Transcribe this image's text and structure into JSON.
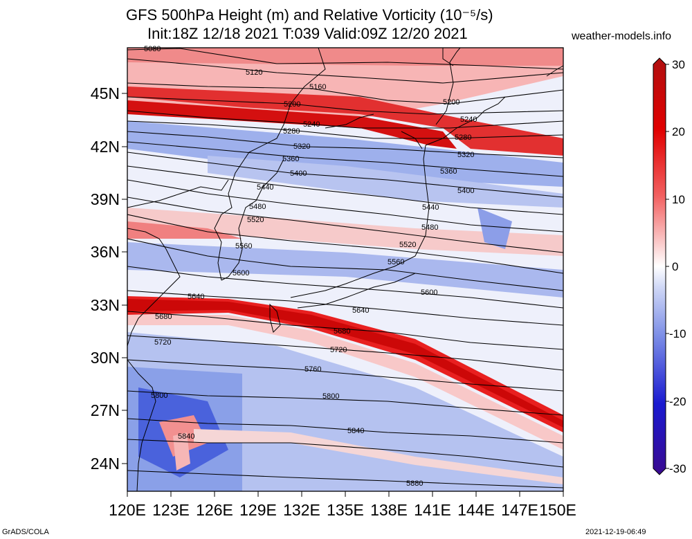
{
  "header": {
    "title_line1": "GFS 500hPa Height (m) and Relative Vorticity (10⁻⁵/s)",
    "title_line2": "Init:18Z 12/18 2021 T:039 Valid:09Z 12/20 2021",
    "site": "weather-models.info"
  },
  "footer": {
    "left": "GrADS/COLA",
    "right": "2021-12-19-06:49"
  },
  "map": {
    "lat_labels": [
      "45N",
      "42N",
      "39N",
      "36N",
      "33N",
      "30N",
      "27N",
      "24N"
    ],
    "lon_labels": [
      "120E",
      "123E",
      "126E",
      "129E",
      "132E",
      "135E",
      "138E",
      "141E",
      "144E",
      "147E",
      "150E"
    ],
    "colorbar_labels": [
      "30",
      "20",
      "10",
      "0",
      "-10",
      "-20",
      "-30"
    ],
    "contour_labels": [
      "5080",
      "5120",
      "5160",
      "5200",
      "5200",
      "5240",
      "5240",
      "5280",
      "5280",
      "5320",
      "5320",
      "5360",
      "5360",
      "5400",
      "5400",
      "5440",
      "5440",
      "5480",
      "5480",
      "5520",
      "5520",
      "5560",
      "5560",
      "5600",
      "5600",
      "5640",
      "5640",
      "5680",
      "5680",
      "5720",
      "5720",
      "5760",
      "5800",
      "5800",
      "5840",
      "5840",
      "5880"
    ],
    "colors": {
      "positive_strong": "#e00000",
      "positive_light": "#f4a0a0",
      "neutral": "#ffffff",
      "negative_light": "#a8b8ee",
      "negative_strong": "#2020e0"
    }
  }
}
